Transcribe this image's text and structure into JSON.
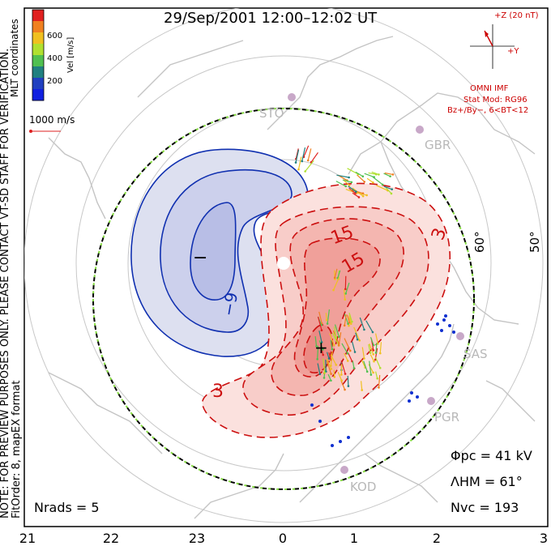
{
  "title": "29/Sep/2001  12:00–12:02  UT",
  "colorbar": {
    "ticks": [
      "600",
      "400",
      "200"
    ],
    "label": "Vel [m/s]",
    "colors": [
      "#e0201f",
      "#f08020",
      "#f0c020",
      "#b0e030",
      "#50c050",
      "#208080",
      "#2040c0",
      "#1020e0"
    ]
  },
  "mlt_label": "MLT coordinates",
  "vector_scale": "1000 m/s",
  "imf": {
    "label_z": "+Z (20 nT)",
    "label_y": "+Y",
    "source": "OMNI IMF",
    "model": "Stat Mod: RG96",
    "condition": "Bz+/By−, 6<BT<12"
  },
  "latitude_labels": [
    "60°",
    "50°"
  ],
  "stations": [
    "STO",
    "GBR",
    "SAS",
    "PGR",
    "KOD"
  ],
  "contours": {
    "negative": [
      "−",
      "−9"
    ],
    "positive": [
      "15",
      "15",
      "3",
      "3",
      "+"
    ]
  },
  "stats": {
    "phi_pc": "Φpc = 41 kV",
    "lambda_hm": "ΛHM = 61°",
    "n_vc": "Nvc = 193",
    "n_rads": "Nrads = 5"
  },
  "note_vertical": "NOTE: FOR PREVIEW PURPOSES ONLY. PLEASE CONTACT VT-SD STAFF FOR VERIFICATION.",
  "fit_order": "FitOrder: 8, mapEX format",
  "mlt_axis": [
    "21",
    "22",
    "23",
    "0",
    "1",
    "2",
    "3"
  ],
  "colors": {
    "negative_contour": "#1030b0",
    "positive_contour": "#cc1010",
    "land": "#c8c8c8",
    "grid": "#c8c8c8"
  }
}
